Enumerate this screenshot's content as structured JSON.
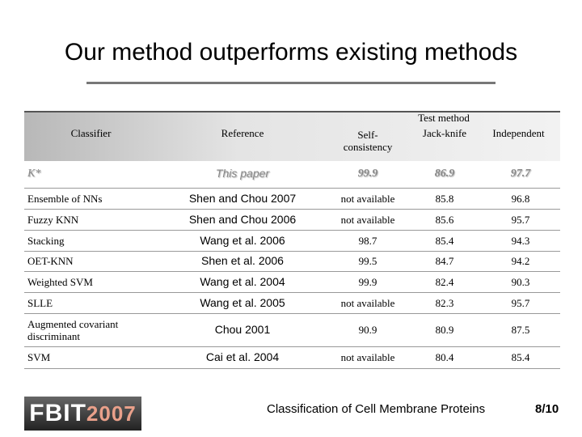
{
  "title": "Our method outperforms existing methods",
  "table": {
    "columns": [
      "Classifier",
      "Reference"
    ],
    "group": "Test method",
    "subcolumns": [
      "Self-consistency",
      "Jack-knife",
      "Independent"
    ],
    "rows": [
      [
        "K*",
        "This paper",
        "99.9",
        "86.9",
        "97.7"
      ],
      [
        "Ensemble of NNs",
        "Shen and Chou 2007",
        "not available",
        "85.8",
        "96.8"
      ],
      [
        "Fuzzy KNN",
        "Shen and Chou 2006",
        "not available",
        "85.6",
        "95.7"
      ],
      [
        "Stacking",
        "Wang et al. 2006",
        "98.7",
        "85.4",
        "94.3"
      ],
      [
        "OET-KNN",
        "Shen et al. 2006",
        "99.5",
        "84.7",
        "94.2"
      ],
      [
        "Weighted SVM",
        "Wang et al. 2004",
        "99.9",
        "82.4",
        "90.3"
      ],
      [
        "SLLE",
        "Wang et al. 2005",
        "not available",
        "82.3",
        "95.7"
      ],
      [
        "Augmented covariant discriminant",
        "Chou 2001",
        "90.9",
        "80.9",
        "87.5"
      ],
      [
        "SVM",
        "Cai et al. 2004",
        "not available",
        "80.4",
        "85.4"
      ]
    ]
  },
  "footer": {
    "logo": [
      "FBIT",
      "2007"
    ],
    "caption": "Classification of Cell Membrane Proteins",
    "page": "8/10"
  }
}
